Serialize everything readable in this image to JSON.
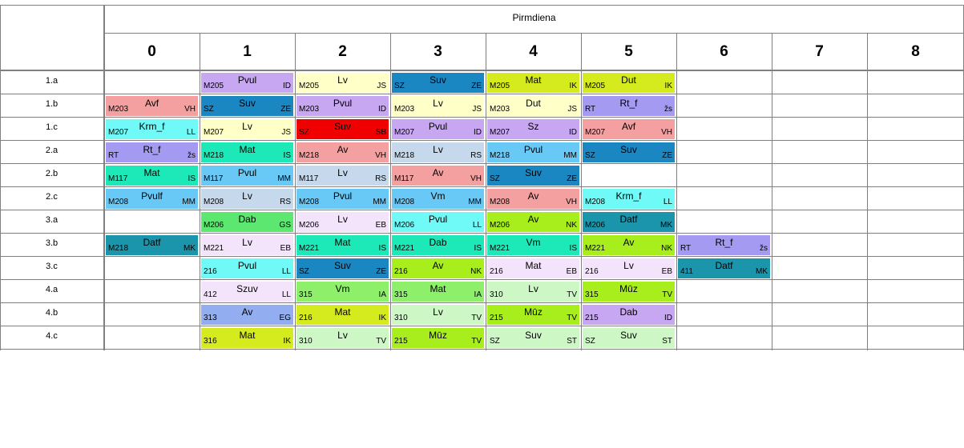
{
  "day_label": "Pirmdiena",
  "periods": [
    "0",
    "1",
    "2",
    "3",
    "4",
    "5",
    "6",
    "7",
    "8"
  ],
  "rows": [
    {
      "class": "1.a",
      "cells": [
        null,
        {
          "subject": "Pvul",
          "room": "M205",
          "teacher": "ID",
          "color": "#c7a6f2"
        },
        {
          "subject": "Lv",
          "room": "M205",
          "teacher": "JS",
          "color": "#ffffc8"
        },
        {
          "subject": "Suv",
          "room": "SZ",
          "teacher": "ZE",
          "color": "#1a86c2"
        },
        {
          "subject": "Mat",
          "room": "M205",
          "teacher": "IK",
          "color": "#d6eb1d"
        },
        {
          "subject": "Dut",
          "room": "M205",
          "teacher": "IK",
          "color": "#d6eb1d"
        },
        null,
        null,
        null
      ]
    },
    {
      "class": "1.b",
      "cells": [
        {
          "subject": "Avf",
          "room": "M203",
          "teacher": "VH",
          "color": "#f5a0a0"
        },
        {
          "subject": "Suv",
          "room": "SZ",
          "teacher": "ZE",
          "color": "#1a86c2"
        },
        {
          "subject": "Pvul",
          "room": "M203",
          "teacher": "ID",
          "color": "#c7a6f2"
        },
        {
          "subject": "Lv",
          "room": "M203",
          "teacher": "JS",
          "color": "#ffffc8"
        },
        {
          "subject": "Dut",
          "room": "M203",
          "teacher": "JS",
          "color": "#ffffc8"
        },
        {
          "subject": "Rt_f",
          "room": "RT",
          "teacher": "žs",
          "color": "#a49af2"
        },
        null,
        null,
        null
      ]
    },
    {
      "class": "1.c",
      "cells": [
        {
          "subject": "Krm_f",
          "room": "M207",
          "teacher": "LL",
          "color": "#6ffaf8"
        },
        {
          "subject": "Lv",
          "room": "M207",
          "teacher": "JS",
          "color": "#ffffc8"
        },
        {
          "subject": "Suv",
          "room": "SZ",
          "teacher": "SB",
          "color": "#f00000"
        },
        {
          "subject": "Pvul",
          "room": "M207",
          "teacher": "ID",
          "color": "#c7a6f2"
        },
        {
          "subject": "Sz",
          "room": "M207",
          "teacher": "ID",
          "color": "#c7a6f2"
        },
        {
          "subject": "Avf",
          "room": "M207",
          "teacher": "VH",
          "color": "#f5a0a0"
        },
        null,
        null,
        null
      ]
    },
    {
      "class": "2.a",
      "cells": [
        {
          "subject": "Rt_f",
          "room": "RT",
          "teacher": "žs",
          "color": "#a49af2"
        },
        {
          "subject": "Mat",
          "room": "M218",
          "teacher": "IS",
          "color": "#1de8b8"
        },
        {
          "subject": "Av",
          "room": "M218",
          "teacher": "VH",
          "color": "#f5a0a0"
        },
        {
          "subject": "Lv",
          "room": "M218",
          "teacher": "RS",
          "color": "#c6d9ec"
        },
        {
          "subject": "Pvul",
          "room": "M218",
          "teacher": "MM",
          "color": "#68c8f6"
        },
        {
          "subject": "Suv",
          "room": "SZ",
          "teacher": "ZE",
          "color": "#1a86c2"
        },
        null,
        null,
        null
      ]
    },
    {
      "class": "2.b",
      "cells": [
        {
          "subject": "Mat",
          "room": "M117",
          "teacher": "IS",
          "color": "#1de8b8"
        },
        {
          "subject": "Pvul",
          "room": "M117",
          "teacher": "MM",
          "color": "#68c8f6"
        },
        {
          "subject": "Lv",
          "room": "M117",
          "teacher": "RS",
          "color": "#c6d9ec"
        },
        {
          "subject": "Av",
          "room": "M117",
          "teacher": "VH",
          "color": "#f5a0a0"
        },
        {
          "subject": "Suv",
          "room": "SZ",
          "teacher": "ZE",
          "color": "#1a86c2"
        },
        null,
        null,
        null,
        null
      ]
    },
    {
      "class": "2.c",
      "cells": [
        {
          "subject": "Pvulf",
          "room": "M208",
          "teacher": "MM",
          "color": "#68c8f6"
        },
        {
          "subject": "Lv",
          "room": "M208",
          "teacher": "RS",
          "color": "#c6d9ec"
        },
        {
          "subject": "Pvul",
          "room": "M208",
          "teacher": "MM",
          "color": "#68c8f6"
        },
        {
          "subject": "Vm",
          "room": "M208",
          "teacher": "MM",
          "color": "#68c8f6"
        },
        {
          "subject": "Av",
          "room": "M208",
          "teacher": "VH",
          "color": "#f5a0a0"
        },
        {
          "subject": "Krm_f",
          "room": "M208",
          "teacher": "LL",
          "color": "#6ffaf8"
        },
        null,
        null,
        null
      ]
    },
    {
      "class": "3.a",
      "cells": [
        null,
        {
          "subject": "Dab",
          "room": "M206",
          "teacher": "GS",
          "color": "#5ce870"
        },
        {
          "subject": "Lv",
          "room": "M206",
          "teacher": "EB",
          "color": "#f3e3fb"
        },
        {
          "subject": "Pvul",
          "room": "M206",
          "teacher": "LL",
          "color": "#6ffaf8"
        },
        {
          "subject": "Av",
          "room": "M206",
          "teacher": "NK",
          "color": "#a8ee1c"
        },
        {
          "subject": "Datf",
          "room": "M206",
          "teacher": "MK",
          "color": "#1b95ac"
        },
        null,
        null,
        null
      ]
    },
    {
      "class": "3.b",
      "cells": [
        {
          "subject": "Datf",
          "room": "M218",
          "teacher": "MK",
          "color": "#1b95ac"
        },
        {
          "subject": "Lv",
          "room": "M221",
          "teacher": "EB",
          "color": "#f3e3fb"
        },
        {
          "subject": "Mat",
          "room": "M221",
          "teacher": "IS",
          "color": "#1de8b8"
        },
        {
          "subject": "Dab",
          "room": "M221",
          "teacher": "IS",
          "color": "#1de8b8"
        },
        {
          "subject": "Vm",
          "room": "M221",
          "teacher": "IS",
          "color": "#1de8b8"
        },
        {
          "subject": "Av",
          "room": "M221",
          "teacher": "NK",
          "color": "#a8ee1c"
        },
        {
          "subject": "Rt_f",
          "room": "RT",
          "teacher": "žs",
          "color": "#a49af2"
        },
        null,
        null
      ]
    },
    {
      "class": "3.c",
      "cells": [
        null,
        {
          "subject": "Pvul",
          "room": "216",
          "teacher": "LL",
          "color": "#6ffaf8"
        },
        {
          "subject": "Suv",
          "room": "SZ",
          "teacher": "ZE",
          "color": "#1a86c2"
        },
        {
          "subject": "Av",
          "room": "216",
          "teacher": "NK",
          "color": "#a8ee1c"
        },
        {
          "subject": "Mat",
          "room": "216",
          "teacher": "EB",
          "color": "#f3e3fb"
        },
        {
          "subject": "Lv",
          "room": "216",
          "teacher": "EB",
          "color": "#f3e3fb"
        },
        {
          "subject": "Datf",
          "room": "411",
          "teacher": "MK",
          "color": "#1b95ac"
        },
        null,
        null
      ]
    },
    {
      "class": "4.a",
      "cells": [
        null,
        {
          "subject": "Szuv",
          "room": "412",
          "teacher": "LL",
          "color": "#f3e3fb"
        },
        {
          "subject": "Vm",
          "room": "315",
          "teacher": "IA",
          "color": "#8ef06a"
        },
        {
          "subject": "Mat",
          "room": "315",
          "teacher": "IA",
          "color": "#8ef06a"
        },
        {
          "subject": "Lv",
          "room": "310",
          "teacher": "TV",
          "color": "#cdf8c6"
        },
        {
          "subject": "Mūz",
          "room": "315",
          "teacher": "TV",
          "color": "#a8ee1c"
        },
        null,
        null,
        null
      ]
    },
    {
      "class": "4.b",
      "cells": [
        null,
        {
          "subject": "Av",
          "room": "313",
          "teacher": "EG",
          "color": "#92aef0"
        },
        {
          "subject": "Mat",
          "room": "216",
          "teacher": "IK",
          "color": "#d6eb1d"
        },
        {
          "subject": "Lv",
          "room": "310",
          "teacher": "TV",
          "color": "#cdf8c6"
        },
        {
          "subject": "Mūz",
          "room": "215",
          "teacher": "TV",
          "color": "#a8ee1c"
        },
        {
          "subject": "Dab",
          "room": "215",
          "teacher": "ID",
          "color": "#c7a6f2"
        },
        null,
        null,
        null
      ]
    },
    {
      "class": "4.c",
      "cells": [
        null,
        {
          "subject": "Mat",
          "room": "316",
          "teacher": "IK",
          "color": "#d6eb1d"
        },
        {
          "subject": "Lv",
          "room": "310",
          "teacher": "TV",
          "color": "#cdf8c6"
        },
        {
          "subject": "Mūz",
          "room": "215",
          "teacher": "TV",
          "color": "#a8ee1c"
        },
        {
          "subject": "Suv",
          "room": "SZ",
          "teacher": "ST",
          "color": "#cdf8c6"
        },
        {
          "subject": "Suv",
          "room": "SZ",
          "teacher": "ST",
          "color": "#cdf8c6"
        },
        null,
        null,
        null
      ]
    }
  ]
}
